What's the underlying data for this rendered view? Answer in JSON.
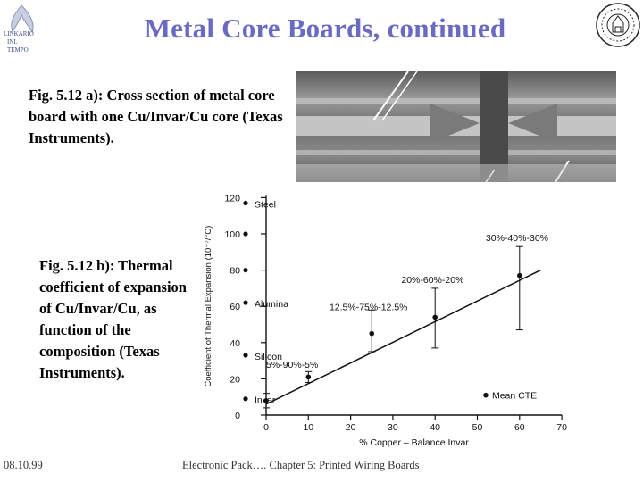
{
  "slide": {
    "title": "Metal Core Boards, continued",
    "caption_a": "Fig. 5.12 a): Cross section of metal core board with one Cu/Invar/Cu core (Texas Instruments).",
    "caption_b": "Fig. 5.12 b): Thermal coefficient of expansion of Cu/Invar/Cu, as function of the composition (Texas Instruments).",
    "logo_left_text": [
      "LINKARIO",
      "INL",
      "TEMPO"
    ]
  },
  "footer": {
    "date": "08.10.99",
    "title": "Electronic Pack….   Chapter 5: Printed Wiring Boards"
  },
  "chart_data": {
    "type": "scatter",
    "xlabel": "% Copper – Balance Invar",
    "ylabel": "Coefficient of Thermal Expansion (10⁻⁷/°C)",
    "xlim": [
      0,
      70
    ],
    "ylim": [
      0,
      120
    ],
    "x_ticks": [
      0,
      10,
      20,
      30,
      40,
      50,
      60,
      70
    ],
    "y_ticks": [
      0,
      20,
      40,
      60,
      80,
      100,
      120
    ],
    "grid": false,
    "legend": "Mean CTE",
    "legend_position": "bottom-right",
    "reference_materials": [
      {
        "label": "Steel",
        "value": 117
      },
      {
        "label": "Alumina",
        "value": 62
      },
      {
        "label": "Silicon",
        "value": 33
      },
      {
        "label": "Invar",
        "value": 9
      }
    ],
    "reference_extra_points": [
      100,
      80
    ],
    "measurements": [
      {
        "x": 0,
        "y": 8,
        "low": 4,
        "high": 12,
        "label": ""
      },
      {
        "x": 10,
        "y": 21,
        "low": 18,
        "high": 24,
        "label": "5%-90%-5%"
      },
      {
        "x": 25,
        "y": 45,
        "low": 35,
        "high": 58,
        "label": "12.5%-75%-12.5%"
      },
      {
        "x": 40,
        "y": 54,
        "low": 37,
        "high": 70,
        "label": "20%-60%-20%"
      },
      {
        "x": 60,
        "y": 77,
        "low": 47,
        "high": 93,
        "label": "30%-40%-30%"
      }
    ],
    "fit_line": {
      "x": [
        0,
        65
      ],
      "y": [
        6,
        80
      ]
    }
  }
}
